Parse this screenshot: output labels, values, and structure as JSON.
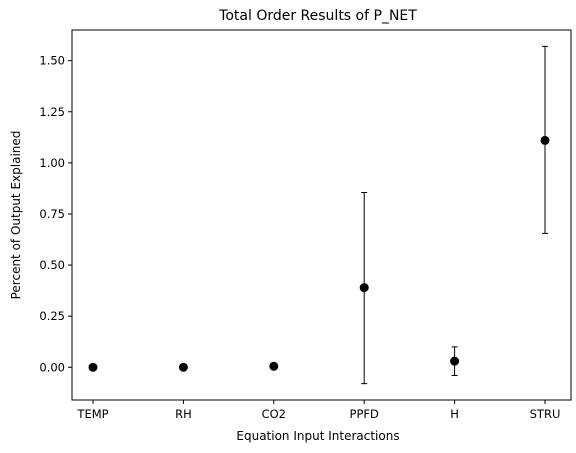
{
  "chart_data": {
    "type": "scatter",
    "title": "Total Order Results of P_NET",
    "xlabel": "Equation Input Interactions",
    "ylabel": "Percent of Output Explained",
    "categories": [
      "TEMP",
      "RH",
      "CO2",
      "PPFD",
      "H",
      "STRU"
    ],
    "values": [
      0.0,
      0.0,
      0.005,
      0.39,
      0.03,
      1.11
    ],
    "error_low": [
      0.0,
      0.0,
      0.0,
      -0.08,
      -0.04,
      0.655
    ],
    "error_high": [
      0.0,
      0.0,
      0.0,
      0.855,
      0.1,
      1.57
    ],
    "ylim": [
      -0.16,
      1.65
    ],
    "yticks": [
      0.0,
      0.25,
      0.5,
      0.75,
      1.0,
      1.25,
      1.5
    ],
    "ytick_labels": [
      "0.00",
      "0.25",
      "0.50",
      "0.75",
      "1.00",
      "1.25",
      "1.50"
    ],
    "grid": false,
    "marker_color": "#000000",
    "error_color": "#000000"
  }
}
